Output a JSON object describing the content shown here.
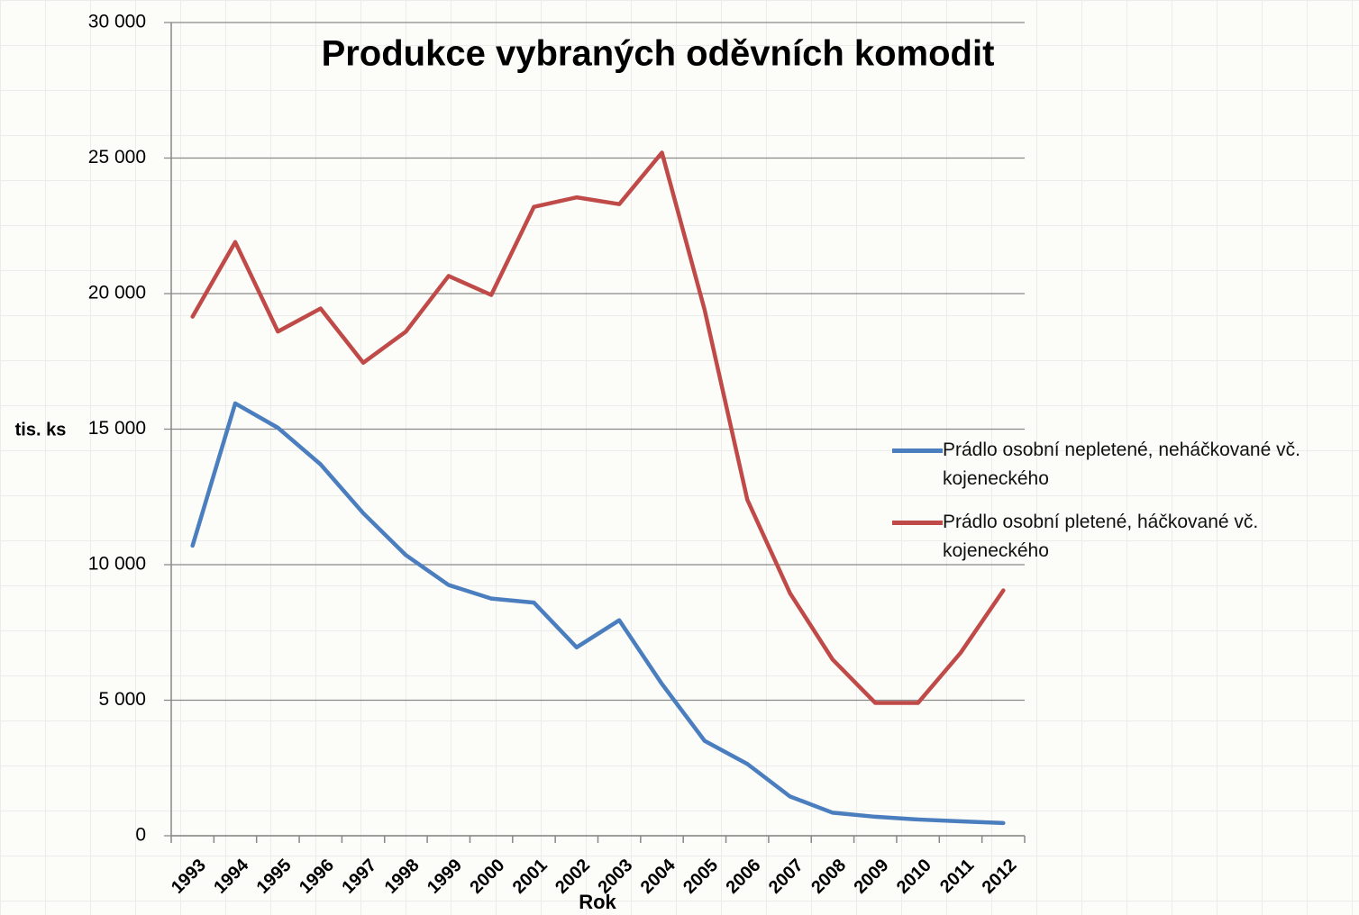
{
  "chart_data": {
    "type": "line",
    "title": "Produkce vybraných oděvních komodit",
    "y_label": "tis. ks",
    "x_label": "Rok",
    "categories": [
      "1993",
      "1994",
      "1995",
      "1996",
      "1997",
      "1998",
      "1999",
      "2000",
      "2001",
      "2002",
      "2003",
      "2004",
      "2005",
      "2006",
      "2007",
      "2008",
      "2009",
      "2010",
      "2011",
      "2012"
    ],
    "series": [
      {
        "name": "Prádlo osobní nepletené, neháčkované vč. kojeneckého",
        "color": "#4a7ebf",
        "values": [
          10700,
          15950,
          15050,
          13700,
          11900,
          10350,
          9250,
          8750,
          8600,
          6950,
          7950,
          5600,
          3500,
          2650,
          1450,
          850,
          700,
          600,
          530,
          470
        ]
      },
      {
        "name": "Prádlo osobní pletené, háčkované vč. kojeneckého",
        "color": "#bf4a48",
        "values": [
          19150,
          21900,
          18600,
          19450,
          17450,
          18600,
          20650,
          19950,
          23200,
          23550,
          23300,
          25200,
          19400,
          12400,
          8950,
          6500,
          4900,
          4900,
          6750,
          9050
        ]
      }
    ],
    "ylim": [
      0,
      30000
    ],
    "yticks": [
      0,
      {
        "value": 5000,
        "label": "5 000"
      },
      {
        "value": 10000,
        "label": "10 000"
      },
      {
        "value": 15000,
        "label": "15 000"
      },
      {
        "value": 20000,
        "label": "20 000"
      },
      {
        "value": 25000,
        "label": "25 000"
      },
      {
        "value": 30000,
        "label": "30 000"
      }
    ],
    "grid": true,
    "legend": "right"
  }
}
